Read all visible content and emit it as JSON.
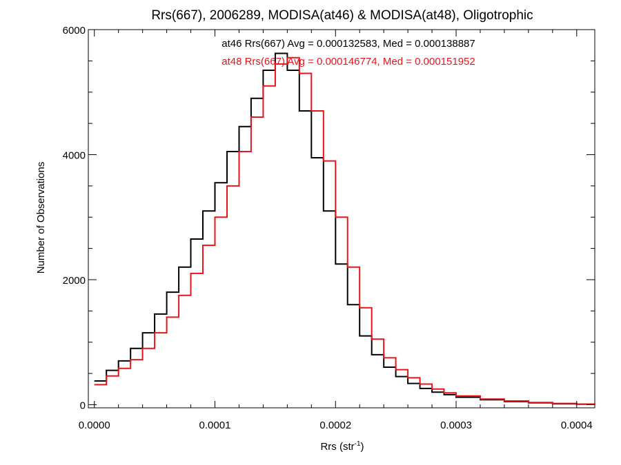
{
  "chart_data": {
    "type": "line",
    "title": "Rrs(667), 2006289, MODISA(at46) & MODISA(at48), Oligotrophic",
    "xlabel_main": "Rrs (str",
    "xlabel_sup": "-1",
    "xlabel_close": ")",
    "ylabel": "Number of Observations",
    "xlim": [
      -5e-06,
      0.000415
    ],
    "ylim": [
      -50,
      6000
    ],
    "xticks": [
      {
        "value": 0.0,
        "label": "0.0000"
      },
      {
        "value": 0.0001,
        "label": "0.0001"
      },
      {
        "value": 0.0002,
        "label": "0.0002"
      },
      {
        "value": 0.0003,
        "label": "0.0003"
      },
      {
        "value": 0.0004,
        "label": "0.0004"
      }
    ],
    "yticks": [
      {
        "value": 0,
        "label": "0"
      },
      {
        "value": 2000,
        "label": "2000"
      },
      {
        "value": 4000,
        "label": "4000"
      },
      {
        "value": 6000,
        "label": "6000"
      }
    ],
    "grid": false,
    "series": [
      {
        "name": "at46",
        "color": "#000000",
        "annotation": "at46 Rrs(667) Avg = 0.000132583, Med = 0.000138887",
        "x": [
          0.0,
          1e-05,
          2e-05,
          3e-05,
          4e-05,
          5e-05,
          6e-05,
          7e-05,
          8e-05,
          9e-05,
          0.0001,
          0.00011,
          0.00012,
          0.00013,
          0.00014,
          0.00015,
          0.00016,
          0.00017,
          0.00018,
          0.00019,
          0.0002,
          0.00021,
          0.00022,
          0.00023,
          0.00024,
          0.00025,
          0.00026,
          0.00027,
          0.00028,
          0.00029,
          0.0003,
          0.00032,
          0.00034,
          0.00036,
          0.00038,
          0.0004,
          0.000415
        ],
        "y": [
          380,
          550,
          700,
          900,
          1150,
          1450,
          1800,
          2200,
          2650,
          3100,
          3550,
          4050,
          4450,
          4900,
          5350,
          5620,
          5350,
          4700,
          3950,
          3100,
          2250,
          1600,
          1100,
          800,
          600,
          450,
          340,
          260,
          200,
          160,
          120,
          80,
          50,
          30,
          15,
          8,
          5
        ]
      },
      {
        "name": "at48",
        "color": "#e8141c",
        "annotation": "at48 Rrs(667) Avg = 0.000146774, Med = 0.000151952",
        "x": [
          0.0,
          1e-05,
          2e-05,
          3e-05,
          4e-05,
          5e-05,
          6e-05,
          7e-05,
          8e-05,
          9e-05,
          0.0001,
          0.00011,
          0.00012,
          0.00013,
          0.00014,
          0.00015,
          0.00016,
          0.00017,
          0.00018,
          0.00019,
          0.0002,
          0.00021,
          0.00022,
          0.00023,
          0.00024,
          0.00025,
          0.00026,
          0.00027,
          0.00028,
          0.00029,
          0.0003,
          0.00032,
          0.00034,
          0.00036,
          0.00038,
          0.0004,
          0.000415
        ],
        "y": [
          320,
          460,
          580,
          720,
          900,
          1150,
          1400,
          1750,
          2100,
          2550,
          3000,
          3500,
          4050,
          4600,
          5100,
          5450,
          5550,
          5300,
          4700,
          3900,
          3000,
          2200,
          1550,
          1050,
          750,
          560,
          430,
          330,
          250,
          190,
          140,
          90,
          60,
          35,
          20,
          10,
          6
        ]
      }
    ]
  }
}
